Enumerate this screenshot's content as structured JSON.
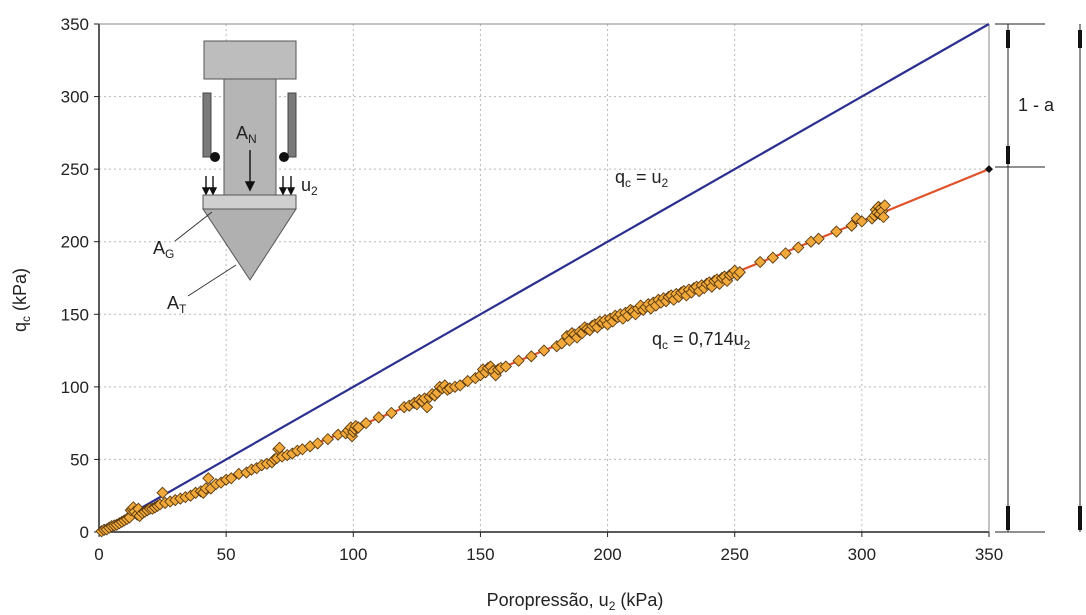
{
  "chart_data": {
    "type": "scatter",
    "xlabel": {
      "main": "Poropressão, u",
      "sub": "2",
      "unit": " (kPa)"
    },
    "ylabel": {
      "main": "q",
      "sub": "c",
      "unit": " (kPa)"
    },
    "xlim": [
      0,
      350
    ],
    "ylim": [
      0,
      350
    ],
    "xticks": [
      "0",
      "50",
      "100",
      "150",
      "200",
      "250",
      "300",
      "350"
    ],
    "yticks": [
      "0",
      "50",
      "100",
      "150",
      "200",
      "250",
      "300",
      "350"
    ],
    "grid": true,
    "lines": [
      {
        "label_main": "q",
        "label_sub": "c",
        "label_rest": " = u",
        "label_sub2": "2",
        "slope": 1.0,
        "x": [
          0,
          350
        ],
        "y": [
          0,
          350
        ],
        "color": "#2b2f8f"
      },
      {
        "label_main": "q",
        "label_sub": "c",
        "label_rest": " = 0,714u",
        "label_sub2": "2",
        "slope": 0.714,
        "x": [
          0,
          350
        ],
        "y": [
          0,
          250
        ],
        "color": "#e0522a"
      }
    ],
    "marker_color": "#f2a93b",
    "points": [
      [
        1,
        0.5
      ],
      [
        2,
        1.5
      ],
      [
        3,
        1.8
      ],
      [
        4,
        3
      ],
      [
        5,
        4
      ],
      [
        6,
        4.5
      ],
      [
        7,
        5
      ],
      [
        8,
        6
      ],
      [
        9,
        7
      ],
      [
        10,
        8
      ],
      [
        11,
        9
      ],
      [
        12,
        10
      ],
      [
        12.5,
        15
      ],
      [
        13,
        16
      ],
      [
        13.5,
        17
      ],
      [
        14,
        14
      ],
      [
        15,
        12
      ],
      [
        15.5,
        16
      ],
      [
        16,
        11
      ],
      [
        17,
        13
      ],
      [
        18,
        14
      ],
      [
        19,
        15
      ],
      [
        20,
        16
      ],
      [
        21,
        16
      ],
      [
        22,
        17
      ],
      [
        23,
        18
      ],
      [
        24,
        19
      ],
      [
        25,
        27
      ],
      [
        26,
        20
      ],
      [
        28,
        21
      ],
      [
        30,
        22
      ],
      [
        32,
        23
      ],
      [
        34,
        24
      ],
      [
        36,
        25
      ],
      [
        38,
        27
      ],
      [
        40,
        28
      ],
      [
        41,
        27
      ],
      [
        42,
        30
      ],
      [
        43,
        37
      ],
      [
        44,
        30
      ],
      [
        46,
        33
      ],
      [
        48,
        34
      ],
      [
        50,
        36
      ],
      [
        52,
        37
      ],
      [
        55,
        40
      ],
      [
        58,
        41
      ],
      [
        60,
        43
      ],
      [
        62,
        44
      ],
      [
        64,
        46
      ],
      [
        66,
        47
      ],
      [
        68,
        48
      ],
      [
        69,
        50
      ],
      [
        70,
        51
      ],
      [
        70.5,
        57
      ],
      [
        71,
        58
      ],
      [
        72,
        52
      ],
      [
        74,
        53
      ],
      [
        76,
        54
      ],
      [
        78,
        56
      ],
      [
        80,
        57
      ],
      [
        83,
        59
      ],
      [
        86,
        61
      ],
      [
        90,
        64
      ],
      [
        94,
        67
      ],
      [
        97,
        68
      ],
      [
        98,
        70
      ],
      [
        99,
        72
      ],
      [
        99.5,
        66
      ],
      [
        100,
        69
      ],
      [
        100.5,
        71
      ],
      [
        101,
        73
      ],
      [
        102,
        72
      ],
      [
        105,
        75
      ],
      [
        110,
        79
      ],
      [
        115,
        82
      ],
      [
        120,
        86
      ],
      [
        122,
        87
      ],
      [
        124,
        89
      ],
      [
        125,
        88
      ],
      [
        126,
        91
      ],
      [
        127,
        90
      ],
      [
        128,
        92
      ],
      [
        129,
        86
      ],
      [
        130,
        93
      ],
      [
        131,
        95
      ],
      [
        132,
        94
      ],
      [
        133,
        96
      ],
      [
        134,
        100
      ],
      [
        135,
        99
      ],
      [
        136,
        101
      ],
      [
        137,
        98
      ],
      [
        138,
        99
      ],
      [
        140,
        100
      ],
      [
        142,
        101
      ],
      [
        145,
        104
      ],
      [
        148,
        106
      ],
      [
        150,
        108
      ],
      [
        151,
        112
      ],
      [
        152,
        110
      ],
      [
        153,
        113
      ],
      [
        154,
        114
      ],
      [
        155,
        111
      ],
      [
        156,
        108
      ],
      [
        157,
        112
      ],
      [
        158,
        113
      ],
      [
        160,
        114
      ],
      [
        165,
        118
      ],
      [
        170,
        121
      ],
      [
        175,
        125
      ],
      [
        180,
        128
      ],
      [
        182,
        130
      ],
      [
        184,
        135
      ],
      [
        185,
        132
      ],
      [
        186,
        137
      ],
      [
        187,
        136
      ],
      [
        188,
        134
      ],
      [
        189,
        138
      ],
      [
        190,
        137
      ],
      [
        191,
        141
      ],
      [
        192,
        140
      ],
      [
        193,
        139
      ],
      [
        194,
        142
      ],
      [
        195,
        143
      ],
      [
        196,
        141
      ],
      [
        197,
        145
      ],
      [
        198,
        144
      ],
      [
        199,
        146
      ],
      [
        200,
        143
      ],
      [
        201,
        147
      ],
      [
        202,
        145
      ],
      [
        203,
        149
      ],
      [
        204,
        148
      ],
      [
        205,
        150
      ],
      [
        206,
        147
      ],
      [
        207,
        151
      ],
      [
        208,
        149
      ],
      [
        209,
        153
      ],
      [
        210,
        152
      ],
      [
        211,
        150
      ],
      [
        212,
        154
      ],
      [
        213,
        156
      ],
      [
        214,
        153
      ],
      [
        215,
        155
      ],
      [
        216,
        157
      ],
      [
        217,
        154
      ],
      [
        218,
        158
      ],
      [
        219,
        156
      ],
      [
        220,
        160
      ],
      [
        221,
        158
      ],
      [
        222,
        161
      ],
      [
        223,
        159
      ],
      [
        224,
        162
      ],
      [
        225,
        163
      ],
      [
        226,
        160
      ],
      [
        227,
        164
      ],
      [
        228,
        162
      ],
      [
        229,
        165
      ],
      [
        230,
        166
      ],
      [
        231,
        163
      ],
      [
        232,
        167
      ],
      [
        233,
        165
      ],
      [
        234,
        168
      ],
      [
        235,
        169
      ],
      [
        236,
        166
      ],
      [
        237,
        170
      ],
      [
        238,
        168
      ],
      [
        239,
        171
      ],
      [
        240,
        172
      ],
      [
        241,
        169
      ],
      [
        242,
        173
      ],
      [
        243,
        174
      ],
      [
        244,
        171
      ],
      [
        245,
        175
      ],
      [
        246,
        176
      ],
      [
        247,
        173
      ],
      [
        248,
        177
      ],
      [
        249,
        178
      ],
      [
        250,
        180
      ],
      [
        251,
        177
      ],
      [
        252,
        179
      ],
      [
        260,
        186
      ],
      [
        265,
        189
      ],
      [
        270,
        192
      ],
      [
        275,
        196
      ],
      [
        280,
        200
      ],
      [
        283,
        202
      ],
      [
        290,
        207
      ],
      [
        296,
        211
      ],
      [
        298,
        216
      ],
      [
        300,
        214
      ],
      [
        304,
        216
      ],
      [
        305,
        218
      ],
      [
        305.5,
        222
      ],
      [
        306,
        220
      ],
      [
        306.5,
        224
      ],
      [
        307,
        219
      ],
      [
        307.5,
        223
      ],
      [
        308,
        221
      ],
      [
        308.5,
        217
      ],
      [
        309,
        225
      ]
    ],
    "endpoint_marker": [
      350,
      250
    ]
  },
  "diagram": {
    "labels": {
      "AN_main": "A",
      "AN_sub": "N",
      "AG_main": "A",
      "AG_sub": "G",
      "AT_main": "A",
      "AT_sub": "T",
      "u2_main": "u",
      "u2_sub": "2"
    }
  },
  "bracket": {
    "label": "1 - a"
  }
}
